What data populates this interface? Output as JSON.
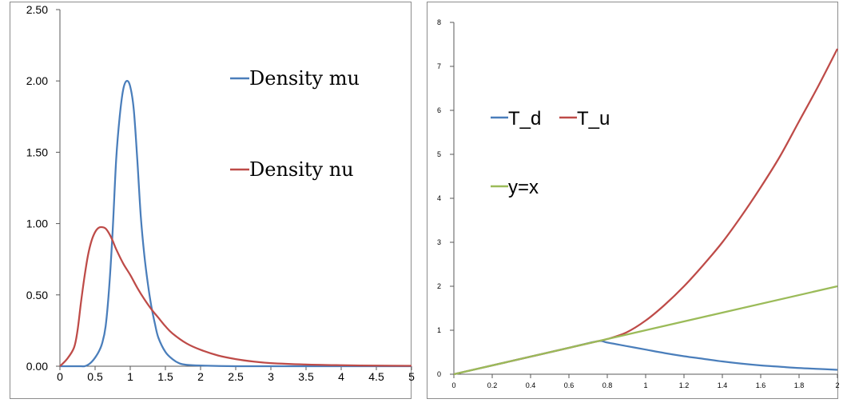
{
  "chart_data": [
    {
      "type": "line",
      "title": "",
      "xlabel": "",
      "ylabel": "",
      "xlim": [
        0,
        5
      ],
      "ylim": [
        0,
        2.5
      ],
      "x_ticks": [
        "0",
        "0.5",
        "1",
        "1.5",
        "2",
        "2.5",
        "3",
        "3.5",
        "4",
        "4.5",
        "5"
      ],
      "y_ticks": [
        "0.00",
        "0.50",
        "1.00",
        "1.50",
        "2.00",
        "2.50"
      ],
      "grid": false,
      "legend_position": "right",
      "series": [
        {
          "name": "Density mu",
          "color": "#4a7ebb",
          "x": [
            0,
            0.1,
            0.2,
            0.3,
            0.35,
            0.4,
            0.45,
            0.5,
            0.55,
            0.6,
            0.65,
            0.7,
            0.75,
            0.8,
            0.85,
            0.9,
            0.95,
            1.0,
            1.05,
            1.1,
            1.15,
            1.2,
            1.25,
            1.3,
            1.35,
            1.4,
            1.5,
            1.6,
            1.7,
            1.8,
            2.0,
            2.5,
            3,
            3.5,
            4,
            4.5,
            5
          ],
          "values": [
            0,
            0,
            0,
            0,
            0,
            0.01,
            0.03,
            0.06,
            0.1,
            0.16,
            0.28,
            0.55,
            0.95,
            1.45,
            1.75,
            1.94,
            2.0,
            1.96,
            1.8,
            1.45,
            1.05,
            0.78,
            0.58,
            0.42,
            0.3,
            0.2,
            0.1,
            0.05,
            0.02,
            0.01,
            0.005,
            0,
            0,
            0,
            0,
            0,
            0
          ]
        },
        {
          "name": "Density nu",
          "color": "#be4b48",
          "x": [
            0,
            0.1,
            0.2,
            0.25,
            0.3,
            0.35,
            0.4,
            0.45,
            0.5,
            0.55,
            0.6,
            0.65,
            0.7,
            0.75,
            0.8,
            0.9,
            1.0,
            1.1,
            1.2,
            1.3,
            1.4,
            1.5,
            1.6,
            1.8,
            2.0,
            2.25,
            2.5,
            2.75,
            3.0,
            3.5,
            4.0,
            4.5,
            5.0
          ],
          "values": [
            0,
            0.05,
            0.13,
            0.25,
            0.45,
            0.63,
            0.78,
            0.88,
            0.94,
            0.97,
            0.975,
            0.965,
            0.93,
            0.88,
            0.82,
            0.72,
            0.64,
            0.55,
            0.47,
            0.4,
            0.34,
            0.28,
            0.23,
            0.16,
            0.115,
            0.075,
            0.05,
            0.033,
            0.022,
            0.012,
            0.007,
            0.004,
            0.003
          ]
        }
      ]
    },
    {
      "type": "line",
      "title": "",
      "xlabel": "",
      "ylabel": "",
      "xlim": [
        0,
        2
      ],
      "ylim": [
        0,
        8
      ],
      "x_ticks": [
        "0",
        "0.2",
        "0.4",
        "0.6",
        "0.8",
        "1",
        "1.2",
        "1.4",
        "1.6",
        "1.8",
        "2"
      ],
      "y_ticks": [
        "0",
        "1",
        "2",
        "3",
        "4",
        "5",
        "6",
        "7",
        "8"
      ],
      "grid": false,
      "legend_position": "left",
      "series": [
        {
          "name": "T_d",
          "color": "#4a7ebb",
          "x": [
            0,
            0.2,
            0.4,
            0.6,
            0.75,
            0.8,
            0.9,
            1.0,
            1.1,
            1.2,
            1.3,
            1.4,
            1.5,
            1.6,
            1.7,
            1.8,
            1.9,
            2.0
          ],
          "values": [
            0,
            0.2,
            0.4,
            0.6,
            0.75,
            0.72,
            0.64,
            0.56,
            0.48,
            0.41,
            0.35,
            0.29,
            0.24,
            0.2,
            0.17,
            0.14,
            0.12,
            0.1
          ]
        },
        {
          "name": "T_u",
          "color": "#be4b48",
          "x": [
            0,
            0.2,
            0.4,
            0.6,
            0.75,
            0.8,
            0.9,
            1.0,
            1.1,
            1.2,
            1.3,
            1.4,
            1.5,
            1.6,
            1.7,
            1.8,
            1.9,
            2.0
          ],
          "values": [
            0,
            0.2,
            0.4,
            0.6,
            0.75,
            0.8,
            0.95,
            1.22,
            1.58,
            2.0,
            2.48,
            3.0,
            3.6,
            4.25,
            4.95,
            5.75,
            6.55,
            7.4
          ]
        },
        {
          "name": "y=x",
          "color": "#9bbb59",
          "x": [
            0,
            2
          ],
          "values": [
            0,
            2
          ]
        }
      ]
    }
  ]
}
